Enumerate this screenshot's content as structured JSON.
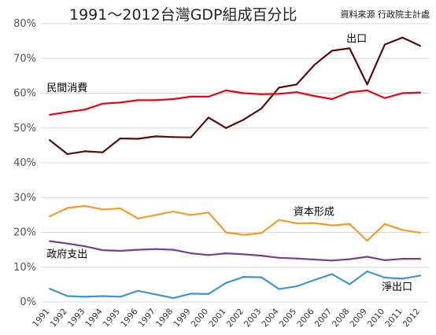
{
  "header": {
    "title": "1991～2012台灣GDP組成百分比",
    "source": "資料來源 行政院主計處"
  },
  "chart_data": {
    "type": "line",
    "title": "1991～2012台灣GDP組成百分比",
    "xlabel": "",
    "ylabel": "",
    "ylim": [
      0,
      80
    ],
    "yticks": [
      "0%",
      "10%",
      "20%",
      "30%",
      "40%",
      "50%",
      "60%",
      "70%",
      "80%"
    ],
    "grid": true,
    "legend": "none",
    "categories": [
      "1991",
      "1992",
      "1993",
      "1994",
      "1995",
      "1996",
      "1997",
      "1998",
      "1999",
      "2000",
      "2001",
      "2002",
      "2003",
      "2004",
      "2005",
      "2006",
      "2007",
      "2008",
      "2009",
      "2010",
      "2011",
      "2012"
    ],
    "series": [
      {
        "name": "出口",
        "color": "#5c0b0b",
        "values": [
          46.5,
          42.5,
          43.3,
          43.0,
          47.0,
          46.9,
          47.6,
          47.4,
          47.3,
          53.0,
          50.0,
          52.4,
          55.6,
          61.6,
          62.5,
          68.1,
          72.2,
          72.9,
          62.5,
          74.0,
          76.0,
          73.6
        ]
      },
      {
        "name": "民間消費",
        "color": "#e30613",
        "values": [
          53.8,
          54.6,
          55.3,
          57.0,
          57.3,
          58.0,
          58.0,
          58.3,
          59.0,
          59.0,
          60.8,
          60.0,
          59.7,
          59.8,
          60.3,
          59.2,
          58.3,
          60.3,
          60.8,
          58.6,
          60.0,
          60.2
        ]
      },
      {
        "name": "資本形成",
        "color": "#f39c27",
        "values": [
          24.6,
          27.0,
          27.6,
          26.6,
          26.9,
          24.0,
          25.0,
          26.0,
          25.0,
          25.7,
          20.0,
          19.3,
          19.8,
          23.6,
          22.6,
          22.7,
          22.0,
          22.4,
          17.6,
          22.4,
          20.7,
          19.9
        ]
      },
      {
        "name": "政府支出",
        "color": "#7a3d8f",
        "values": [
          17.5,
          16.8,
          16.0,
          14.9,
          14.7,
          15.0,
          15.2,
          15.0,
          14.0,
          13.5,
          14.0,
          13.7,
          13.3,
          12.7,
          12.5,
          12.2,
          11.9,
          12.3,
          13.0,
          12.0,
          12.4,
          12.4
        ]
      },
      {
        "name": "淨出口",
        "color": "#3b97d3",
        "values": [
          3.8,
          1.7,
          1.5,
          1.7,
          1.5,
          3.2,
          2.2,
          1.1,
          2.4,
          2.3,
          5.5,
          7.2,
          7.1,
          3.7,
          4.5,
          6.3,
          8.0,
          5.1,
          8.8,
          7.0,
          6.7,
          7.6
        ]
      }
    ],
    "annotations": [
      {
        "text": "出口",
        "x": "2008",
        "y": 74.7
      },
      {
        "text": "民間消費",
        "x": "1991",
        "y": 60.6
      },
      {
        "text": "資本形成",
        "x": "2005",
        "y": 25.0
      },
      {
        "text": "政府支出",
        "x": "1991",
        "y": 12.8
      },
      {
        "text": "淨出口",
        "x": "2010",
        "y": 3.4
      }
    ]
  }
}
